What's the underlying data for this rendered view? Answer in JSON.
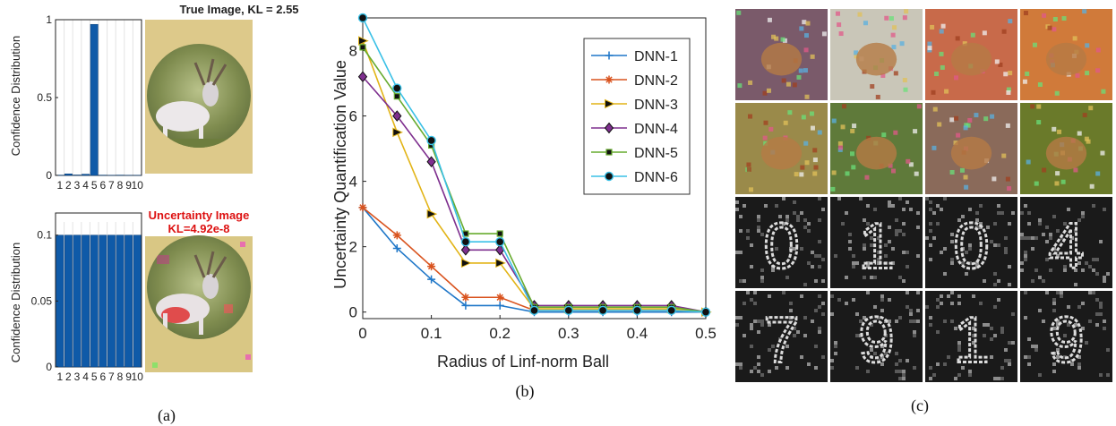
{
  "captions": {
    "a": "(a)",
    "b": "(b)",
    "c": "(c)"
  },
  "chart_data": [
    {
      "type": "bar",
      "panel": "a-top",
      "title": "True Image, KL = 2.55",
      "ylabel": "Confidence Distribution",
      "categories": [
        "1",
        "2",
        "3",
        "4",
        "5",
        "6",
        "7",
        "8",
        "9",
        "10"
      ],
      "values": [
        0.002,
        0.01,
        0.003,
        0.008,
        0.97,
        0.002,
        0.001,
        0.002,
        0.001,
        0.001
      ],
      "ylim": [
        0,
        1
      ],
      "yticks": [
        "0",
        "0.5",
        "1"
      ],
      "bar_color": "#0f5aa8",
      "grid": true
    },
    {
      "type": "bar",
      "panel": "a-bottom",
      "title": "Uncertainty Image",
      "subtitle": "KL=4.92e-8",
      "ylabel": "Confidence Distribution",
      "categories": [
        "1",
        "2",
        "3",
        "4",
        "5",
        "6",
        "7",
        "8",
        "9",
        "10"
      ],
      "values": [
        0.1,
        0.1,
        0.1,
        0.1,
        0.1,
        0.1,
        0.1,
        0.1,
        0.1,
        0.1
      ],
      "ylim": [
        0,
        0.11
      ],
      "yticks": [
        "0",
        "0.05",
        "0.1"
      ],
      "bar_color": "#0f5aa8",
      "grid": true
    },
    {
      "type": "line",
      "panel": "b",
      "xlabel": "Radius of Linf-norm Ball",
      "ylabel": "Uncertainty Quantification Value",
      "x": [
        0,
        0.05,
        0.1,
        0.15,
        0.2,
        0.25,
        0.3,
        0.35,
        0.4,
        0.45,
        0.5
      ],
      "xlim": [
        0,
        0.5
      ],
      "ylim": [
        -0.2,
        9
      ],
      "xticks": [
        "0",
        "0.1",
        "0.2",
        "0.3",
        "0.4",
        "0.5"
      ],
      "yticks": [
        "0",
        "2",
        "4",
        "6",
        "8"
      ],
      "legend_position": "top-right",
      "series": [
        {
          "name": "DNN-1",
          "color": "#1f77c8",
          "marker": "plus",
          "values": [
            3.2,
            1.95,
            1.0,
            0.2,
            0.2,
            0.0,
            0.0,
            0.0,
            0.0,
            0.0,
            0.0
          ]
        },
        {
          "name": "DNN-2",
          "color": "#d9531e",
          "marker": "star",
          "values": [
            3.2,
            2.35,
            1.4,
            0.45,
            0.45,
            0.05,
            0.05,
            0.05,
            0.05,
            0.05,
            0.0
          ]
        },
        {
          "name": "DNN-3",
          "color": "#e2b417",
          "marker": "triangle",
          "values": [
            8.3,
            5.5,
            3.0,
            1.5,
            1.5,
            0.1,
            0.1,
            0.1,
            0.1,
            0.1,
            0.0
          ]
        },
        {
          "name": "DNN-4",
          "color": "#7e2f8e",
          "marker": "diamond",
          "values": [
            7.2,
            6.0,
            4.6,
            1.9,
            1.9,
            0.2,
            0.2,
            0.2,
            0.2,
            0.2,
            0.0
          ]
        },
        {
          "name": "DNN-5",
          "color": "#67ab2f",
          "marker": "square",
          "values": [
            8.1,
            6.6,
            5.1,
            2.4,
            2.4,
            0.15,
            0.15,
            0.15,
            0.15,
            0.15,
            0.0
          ]
        },
        {
          "name": "DNN-6",
          "color": "#3ac0e6",
          "marker": "circle",
          "values": [
            9.0,
            6.85,
            5.25,
            2.15,
            2.15,
            0.05,
            0.05,
            0.05,
            0.05,
            0.05,
            0.0
          ]
        }
      ]
    }
  ],
  "images": {
    "deer_true": {
      "desc_colors": [
        "#d9c784",
        "#7c8f4b",
        "#e9e6e6",
        "#5c4a2e"
      ]
    },
    "deer_uncertain": {
      "desc_colors": [
        "#d9c784",
        "#7c8f4b",
        "#e94f4f",
        "#5c4a2e"
      ]
    },
    "grid_row1": [
      "#7a5a6a",
      "#c9c6b8",
      "#c86a4a",
      "#d07a3a"
    ],
    "grid_row2": [
      "#9a8a4a",
      "#5f7a3a",
      "#8a6a5a",
      "#6a7a2a"
    ],
    "grid_row3_digits": [
      "0",
      "1",
      "0",
      "4"
    ],
    "grid_row4_digits": [
      "7",
      "9",
      "1",
      "9"
    ]
  }
}
